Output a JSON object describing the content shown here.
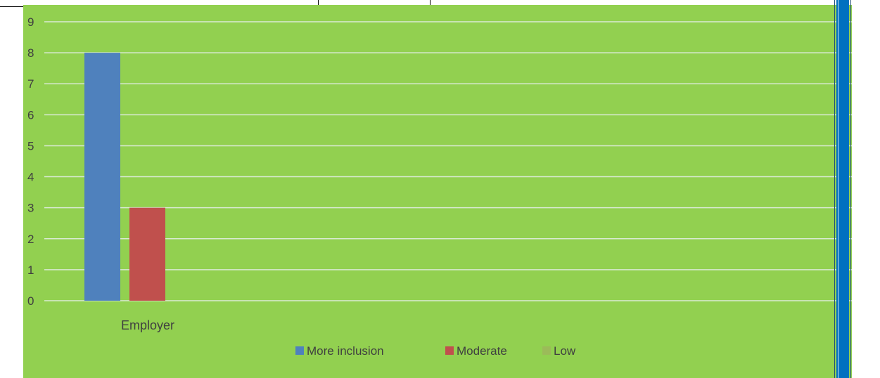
{
  "chart_data": {
    "type": "bar",
    "categories": [
      "Employer"
    ],
    "series": [
      {
        "name": "More inclusion",
        "values": [
          8
        ],
        "color": "#4f81bd"
      },
      {
        "name": "Moderate",
        "values": [
          3
        ],
        "color": "#c0504d"
      },
      {
        "name": "Low",
        "values": [
          0
        ],
        "color": "#9bbb59"
      }
    ],
    "y_ticks": [
      "0",
      "1",
      "2",
      "3",
      "4",
      "5",
      "6",
      "7",
      "8",
      "9"
    ],
    "ylim": [
      0,
      9
    ],
    "grid": true,
    "legend_position": "bottom",
    "plot_background": "#92d050",
    "gridline_color": "#d9ead3"
  }
}
